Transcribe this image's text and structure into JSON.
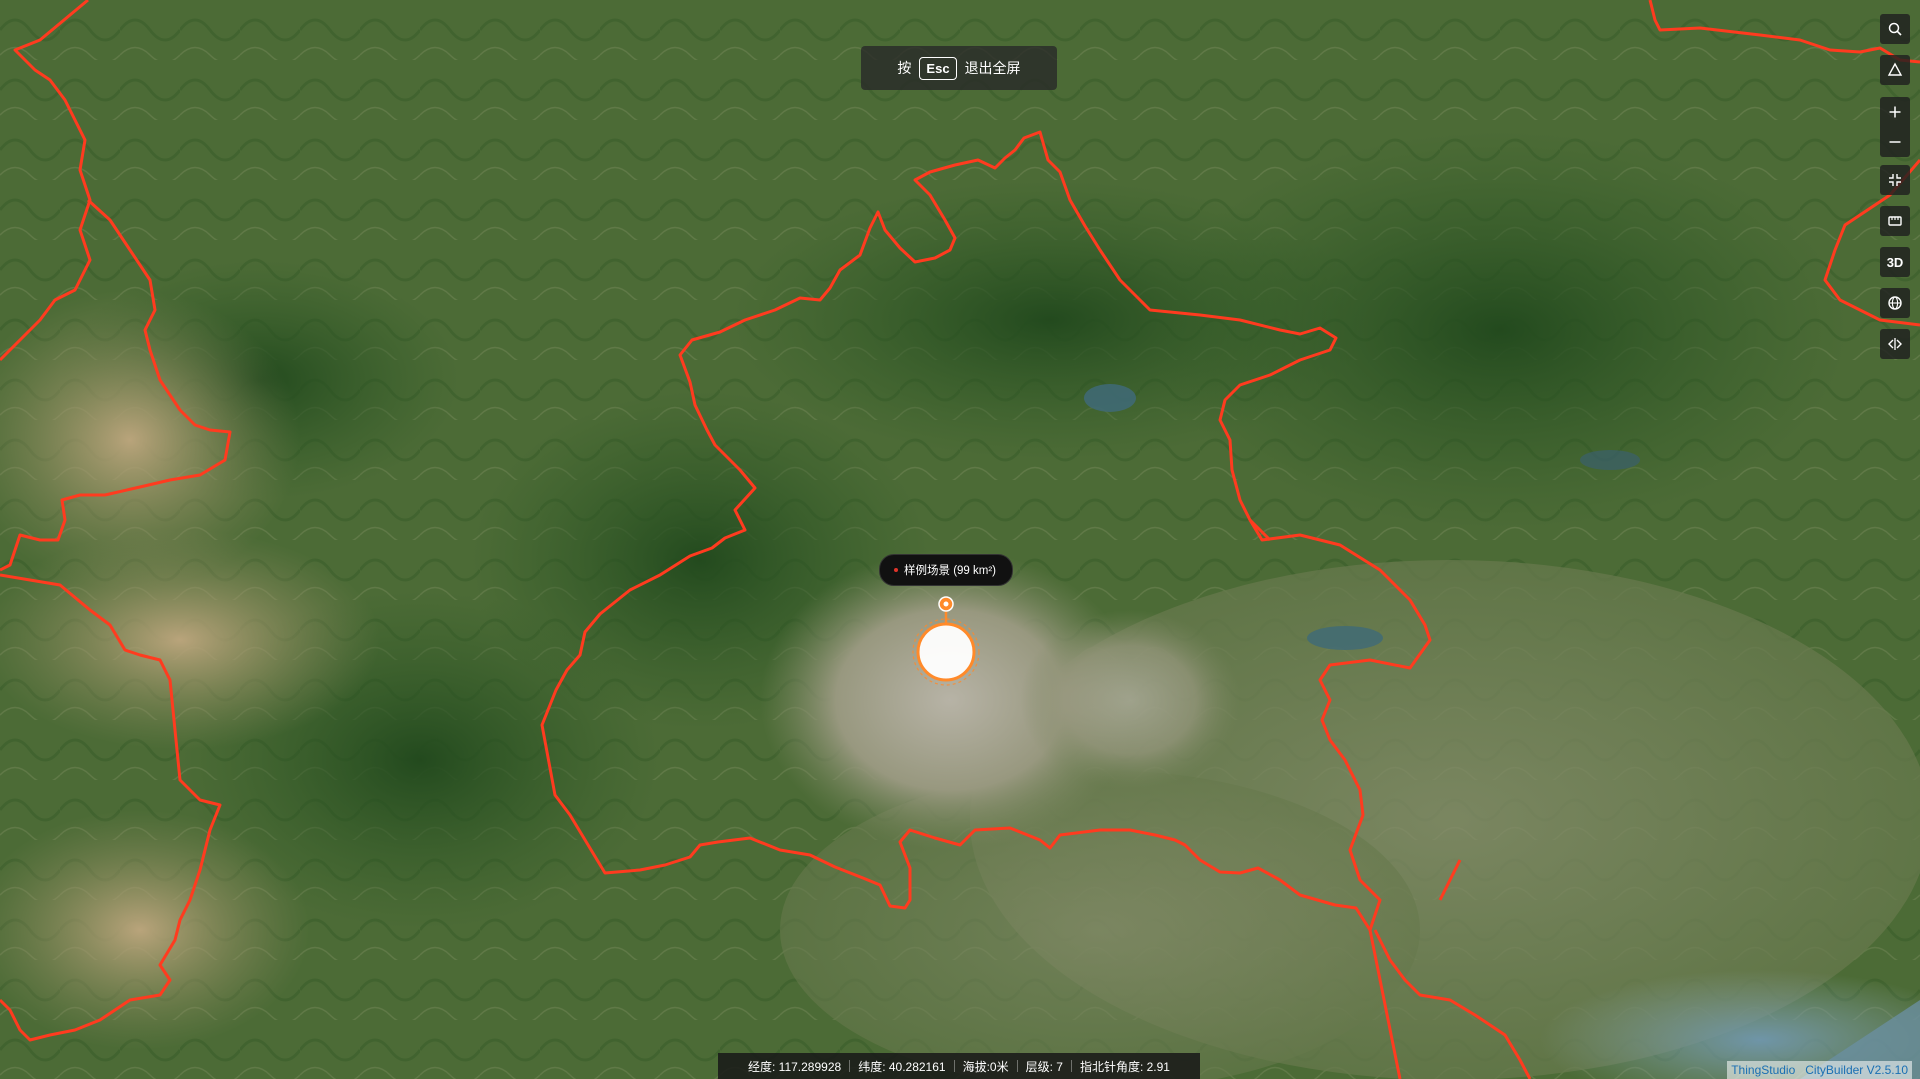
{
  "esc_hint": {
    "prefix": "按",
    "key": "Esc",
    "suffix": "退出全屏"
  },
  "toolbar": {
    "search_icon": "search-icon",
    "compass_icon": "compass-icon",
    "zoom_in_icon": "plus-icon",
    "zoom_out_icon": "minus-icon",
    "fit_icon": "collapse-icon",
    "measure_icon": "ruler-icon",
    "view_mode_label": "3D",
    "globe_icon": "globe-icon",
    "split_icon": "split-icon"
  },
  "scene_marker": {
    "label": "样例场景 (99 km²)",
    "dot_color": "#e0342a",
    "pin_color": "#ff8a2a"
  },
  "status": {
    "longitude": "经度: 117.289928",
    "latitude": "纬度: 40.282161",
    "altitude": "海拔:0米",
    "level": "层级: 7",
    "heading": "指北针角度: 2.91"
  },
  "credits": {
    "studio": "ThingStudio",
    "builder": "CityBuilder V2.5.10"
  },
  "map": {
    "boundary_color": "#ff3b1f"
  }
}
